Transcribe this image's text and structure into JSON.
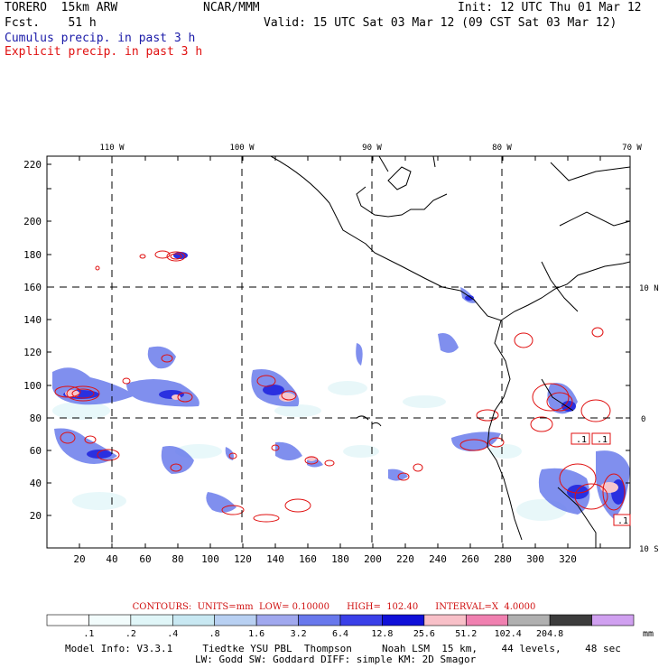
{
  "header": {
    "model": "TORERO  15km ARW",
    "center": "NCAR/MMM",
    "init": "Init: 12 UTC Thu 01 Mar 12",
    "fcst": "Fcst.    51 h",
    "valid": "Valid: 15 UTC Sat 03 Mar 12 (09 CST Sat 03 Mar 12)",
    "cumulus": "Cumulus precip. in past 3 h",
    "explicit": "Explicit precip. in past 3 h"
  },
  "colors": {
    "cumulus": "#1a1aa8",
    "explicit": "#e01010"
  },
  "map": {
    "lon_labels": [
      "110 W",
      "100 W",
      "90 W",
      "80 W",
      "70 W"
    ],
    "lat_labels": [
      "10 N",
      "0",
      "10 S"
    ],
    "y_ticks": [
      "20",
      "40",
      "60",
      "80",
      "100",
      "120",
      "140",
      "160",
      "180",
      "200",
      "220"
    ],
    "x_ticks": [
      "20",
      "40",
      "60",
      "80",
      "100",
      "120",
      "140",
      "160",
      "180",
      "200",
      "220",
      "240",
      "260",
      "280",
      "300",
      "320"
    ],
    "box_labels": [
      ".1",
      ".1",
      ".1"
    ]
  },
  "contours": {
    "label": "CONTOURS:  UNITS=mm  LOW= 0.10000      HIGH=  102.40      INTERVAL=X  4.0000"
  },
  "colorbar": {
    "labels": [
      ".1",
      ".2",
      ".4",
      ".8",
      "1.6",
      "3.2",
      "6.4",
      "12.8",
      "25.6",
      "51.2",
      "102.4",
      "204.8"
    ],
    "unit": "mm",
    "colors": [
      "#ffffff",
      "#f2fcfc",
      "#e0f6f8",
      "#c8e8f2",
      "#b8d0f2",
      "#a0a8ee",
      "#6878ec",
      "#3a40e8",
      "#1010d8",
      "#f8c0c8",
      "#f080b0",
      "#b0b0b0",
      "#3c3c3c",
      "#d0a0f0"
    ]
  },
  "footer": {
    "line1": "Model Info: V3.3.1     Tiedtke YSU PBL  Thompson     Noah LSM  15 km,    44 levels,    48 sec",
    "line2": "LW: Godd SW: Goddard DIFF: simple KM: 2D Smagor"
  }
}
